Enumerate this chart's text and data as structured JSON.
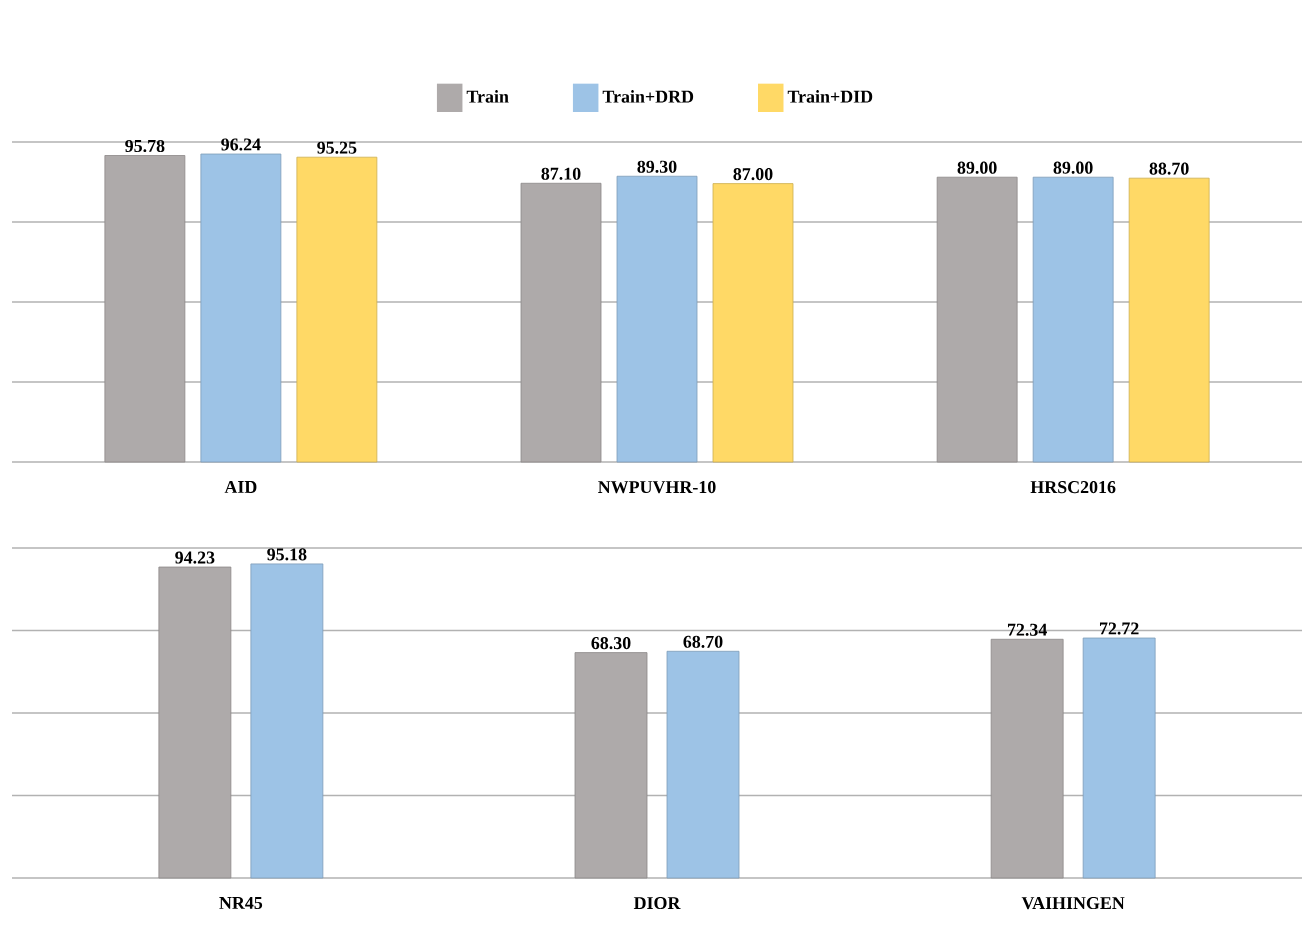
{
  "chart_data": [
    {
      "type": "bar",
      "categories": [
        "AID",
        "NWPUVHR-10",
        "HRSC2016"
      ],
      "series": [
        {
          "name": "Train",
          "color": "#aeaaaa",
          "values": [
            95.78,
            87.1,
            89.0
          ],
          "value_labels": [
            "95.78",
            "87.10",
            "89.00"
          ]
        },
        {
          "name": "Train+DRD",
          "color": "#9dc3e6",
          "values": [
            96.24,
            89.3,
            89.0
          ],
          "value_labels": [
            "96.24",
            "89.30",
            "89.00"
          ]
        },
        {
          "name": "Train+DID",
          "color": "#ffd966",
          "values": [
            95.25,
            87.0,
            88.7
          ],
          "value_labels": [
            "95.25",
            "87.00",
            "88.70"
          ]
        }
      ],
      "ylim": [
        0,
        100
      ],
      "yticks": [
        {
          "value": 0,
          "label": null
        },
        {
          "value": 25,
          "label": null
        },
        {
          "value": 50,
          "label": null
        },
        {
          "value": 75,
          "label": null
        },
        {
          "value": 100,
          "label": null
        }
      ],
      "grid": "y",
      "legend": "top",
      "tick_labels": "x"
    },
    {
      "type": "bar",
      "categories": [
        "NR45",
        "DIOR",
        "VAIHINGEN"
      ],
      "series": [
        {
          "color": "#aeaaaa",
          "values": [
            94.23,
            68.3,
            72.34
          ],
          "value_labels": [
            "94.23",
            "68.30",
            "72.34"
          ]
        },
        {
          "color": "#9dc3e6",
          "values": [
            95.18,
            68.7,
            72.72
          ],
          "value_labels": [
            "95.18",
            "68.70",
            "72.72"
          ]
        }
      ],
      "ylim": [
        0,
        100
      ],
      "yticks": [
        {
          "value": 0,
          "label": null
        },
        {
          "value": 25,
          "label": null
        },
        {
          "value": 50,
          "label": null
        },
        {
          "value": 75,
          "label": null
        },
        {
          "value": 100,
          "label": null
        }
      ],
      "grid": "y",
      "tick_labels": "x"
    }
  ]
}
